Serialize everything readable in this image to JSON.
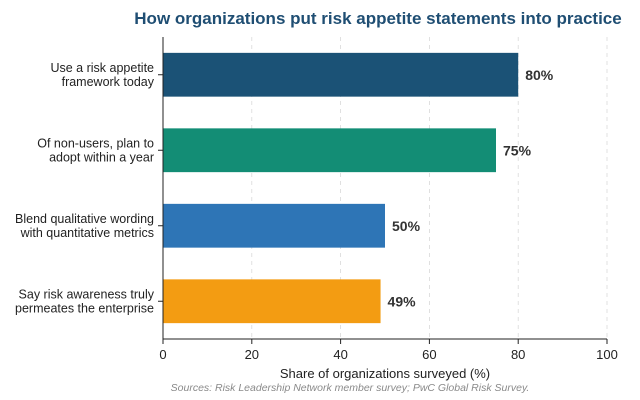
{
  "chart_data": {
    "type": "bar",
    "orientation": "horizontal",
    "title": "How organizations put risk appetite statements into practice",
    "xlabel": "Share of organizations surveyed (%)",
    "ylabel": "",
    "xlim": [
      0,
      100
    ],
    "xticks": [
      "0",
      "20",
      "40",
      "60",
      "80",
      "100"
    ],
    "grid": "vertical dashed",
    "legend": "none",
    "categories": [
      [
        "Use a risk appetite",
        "framework today"
      ],
      [
        "Of non-users, plan to",
        "adopt within a year"
      ],
      [
        "Blend qualitative wording",
        "with quantitative metrics"
      ],
      [
        "Say risk awareness truly",
        "permeates the enterprise"
      ]
    ],
    "values": [
      80,
      75,
      50,
      49
    ],
    "value_labels": [
      "80%",
      "75%",
      "50%",
      "49%"
    ],
    "colors": [
      "#1b5276",
      "#138d75",
      "#2e75b6",
      "#f39c12"
    ],
    "source": "Sources: Risk Leadership Network member survey; PwC Global Risk Survey."
  }
}
